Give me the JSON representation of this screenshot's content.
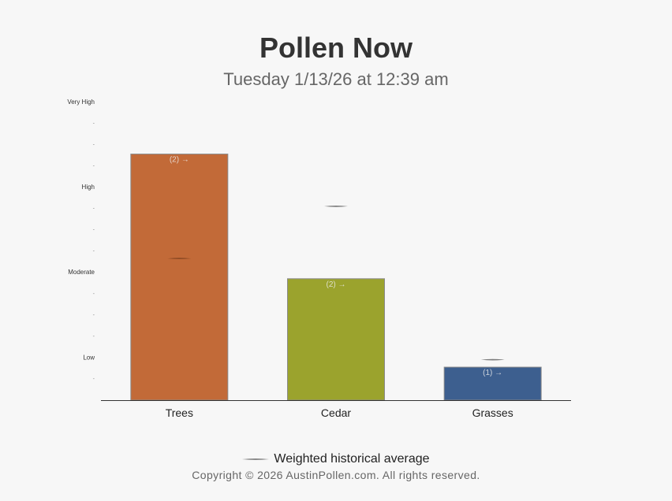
{
  "header": {
    "title": "Pollen Now",
    "subtitle": "Tuesday 1/13/26 at 12:39 am"
  },
  "legend": {
    "label": "Weighted historical average"
  },
  "footer": {
    "copyright": "Copyright © 2026 AustinPollen.com.  All rights reserved."
  },
  "chart_data": {
    "type": "bar",
    "title": "Pollen Now",
    "subtitle": "Tuesday 1/13/26 at 12:39 am",
    "categories": [
      "Trees",
      "Cedar",
      "Grasses"
    ],
    "series": [
      {
        "values": [
          11.55,
          5.7,
          1.55
        ],
        "colors": [
          "#c26a38",
          "#9ba32d",
          "#3d5f8f"
        ],
        "labels": [
          "(2) →",
          "(2) →",
          "(1) →"
        ]
      },
      {
        "name": "Weighted historical average",
        "type": "marker",
        "values": [
          6.65,
          9.1,
          1.9
        ]
      }
    ],
    "ylim": [
      0,
      13.2
    ],
    "yticks": [
      {
        "value": 2,
        "label": "Low"
      },
      {
        "value": 6,
        "label": "Moderate"
      },
      {
        "value": 10,
        "label": "High"
      },
      {
        "value": 14,
        "label": "Very High"
      }
    ],
    "minor_ticks": [
      1,
      3,
      4,
      5,
      7,
      8,
      9,
      11,
      12,
      13
    ],
    "minor_tick_label": "-",
    "grid": false,
    "legend": "bottom"
  }
}
